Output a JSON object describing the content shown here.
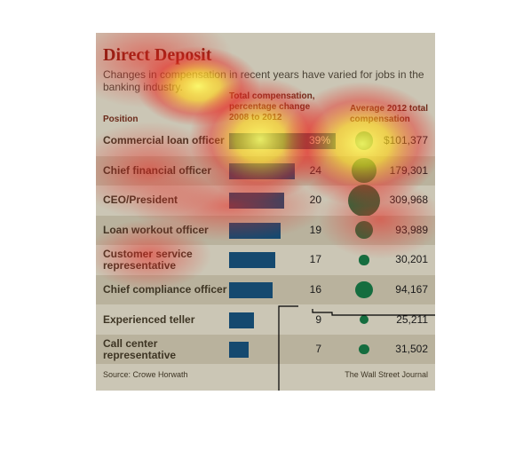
{
  "chart_data": {
    "type": "table",
    "title": "Direct Deposit",
    "subtitle": "Changes in compensation in recent years have varied for jobs in the banking industry.",
    "columns": {
      "position": "Position",
      "change": "Total compensation, percentage change 2008 to 2012",
      "average": "Average 2012 total compensation"
    },
    "rows": [
      {
        "position": "Commercial loan officer",
        "pct": 39,
        "pct_label": "39%",
        "avg": 101377,
        "avg_label": "$101,377"
      },
      {
        "position": "Chief financial officer",
        "pct": 24,
        "pct_label": "24",
        "avg": 179301,
        "avg_label": "179,301"
      },
      {
        "position": "CEO/President",
        "pct": 20,
        "pct_label": "20",
        "avg": 309968,
        "avg_label": "309,968"
      },
      {
        "position": "Loan workout officer",
        "pct": 19,
        "pct_label": "19",
        "avg": 93989,
        "avg_label": "93,989"
      },
      {
        "position": "Customer service representative",
        "pct": 17,
        "pct_label": "17",
        "avg": 30201,
        "avg_label": "30,201"
      },
      {
        "position": "Chief compliance officer",
        "pct": 16,
        "pct_label": "16",
        "avg": 94167,
        "avg_label": "94,167"
      },
      {
        "position": "Experienced teller",
        "pct": 9,
        "pct_label": "9",
        "avg": 25211,
        "avg_label": "25,211"
      },
      {
        "position": "Call center representative",
        "pct": 7,
        "pct_label": "7",
        "avg": 31502,
        "avg_label": "31,502"
      }
    ],
    "source": "Source: Crowe Horwath",
    "credit": "The Wall Street Journal"
  },
  "colors": {
    "bar": "#15496f",
    "dot": "#156d3f",
    "title": "#7a1c10",
    "background": "#cbc6b5",
    "row_shade": "#b9b29d"
  },
  "overlay": "attention heatmap (red/yellow) with gaze-path lines"
}
